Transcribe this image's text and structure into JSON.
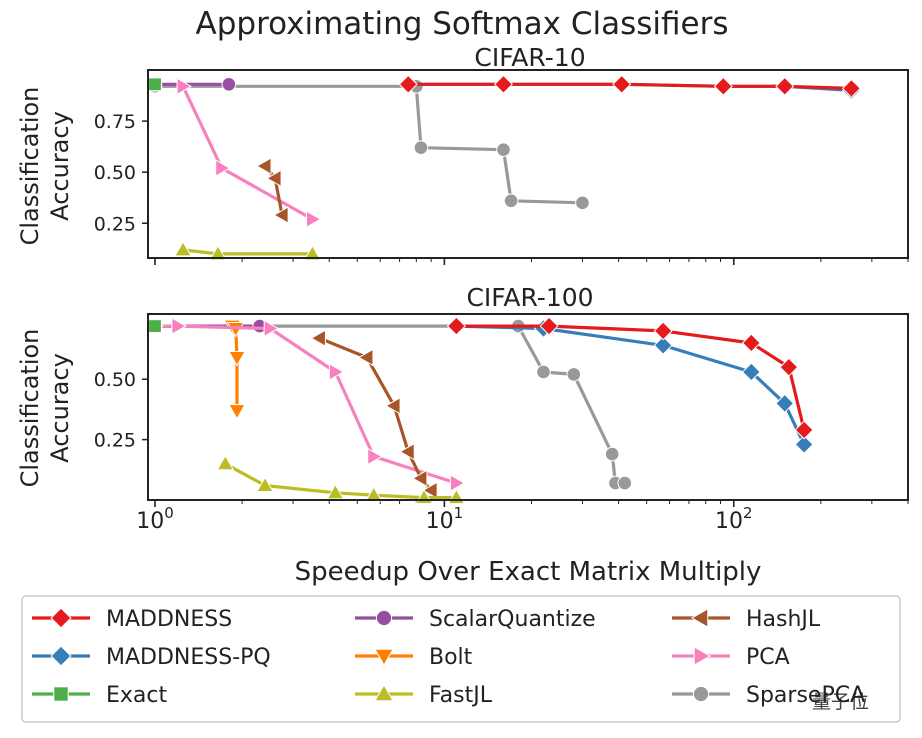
{
  "chart_data": {
    "type": "line",
    "title": "Approximating Softmax Classifiers",
    "xlabel": "Speedup Over Exact Matrix Multiply",
    "xscale": "log",
    "xlim": [
      1,
      400
    ],
    "xticks": [
      {
        "value": 1,
        "base": "10",
        "exp": "0"
      },
      {
        "value": 10,
        "base": "10",
        "exp": "1"
      },
      {
        "value": 100,
        "base": "10",
        "exp": "2"
      }
    ],
    "ylabel_line1": "Classification",
    "ylabel_line2": "Accuracy",
    "legend_position": "bottom",
    "colors": {
      "MADDNESS": "#e41a1c",
      "MADDNESS-PQ": "#377eb8",
      "Exact": "#4daf4a",
      "ScalarQuantize": "#984ea3",
      "Bolt": "#ff7f00",
      "FastJL": "#bcbd22",
      "HashJL": "#a65628",
      "PCA": "#f781bf",
      "SparsePCA": "#999999"
    },
    "markers": {
      "MADDNESS": "diamond",
      "MADDNESS-PQ": "diamond",
      "Exact": "square",
      "ScalarQuantize": "circle",
      "Bolt": "triangle-down",
      "FastJL": "triangle-up",
      "HashJL": "triangle-left",
      "PCA": "triangle-right",
      "SparsePCA": "circle"
    },
    "legend": [
      "MADDNESS",
      "ScalarQuantize",
      "HashJL",
      "MADDNESS-PQ",
      "Bolt",
      "PCA",
      "Exact",
      "FastJL",
      "SparsePCA"
    ],
    "panels": [
      {
        "name": "CIFAR-10",
        "title": "CIFAR-10",
        "ylim": [
          0.08,
          1.0
        ],
        "yticks": [
          0.25,
          0.5,
          0.75
        ],
        "ytick_labels": [
          "0.25",
          "0.50",
          "0.75"
        ],
        "series": [
          {
            "name": "SparsePCA",
            "x": [
              1.0,
              8.0,
              8.3,
              16.0,
              17.0,
              30.0
            ],
            "y": [
              0.92,
              0.92,
              0.62,
              0.61,
              0.36,
              0.35
            ]
          },
          {
            "name": "ScalarQuantize",
            "x": [
              1.0,
              1.8
            ],
            "y": [
              0.93,
              0.93
            ]
          },
          {
            "name": "MADDNESS-PQ",
            "x": [
              7.5,
              16.0,
              41.0,
              92.0,
              150.0,
              255.0
            ],
            "y": [
              0.93,
              0.93,
              0.93,
              0.92,
              0.92,
              0.9
            ]
          },
          {
            "name": "MADDNESS",
            "x": [
              7.5,
              16.0,
              41.0,
              92.0,
              150.0,
              255.0
            ],
            "y": [
              0.93,
              0.93,
              0.93,
              0.92,
              0.92,
              0.91
            ]
          },
          {
            "name": "PCA",
            "x": [
              1.25,
              1.7,
              3.5
            ],
            "y": [
              0.92,
              0.52,
              0.27
            ]
          },
          {
            "name": "HashJL",
            "x": [
              2.4,
              2.6,
              2.75
            ],
            "y": [
              0.53,
              0.47,
              0.29
            ]
          },
          {
            "name": "FastJL",
            "x": [
              1.25,
              1.65,
              3.5
            ],
            "y": [
              0.12,
              0.1,
              0.1
            ]
          },
          {
            "name": "Exact",
            "x": [
              1.0
            ],
            "y": [
              0.93
            ]
          }
        ]
      },
      {
        "name": "CIFAR-100",
        "title": "CIFAR-100",
        "ylim": [
          0.0,
          0.77
        ],
        "yticks": [
          0.25,
          0.5
        ],
        "ytick_labels": [
          "0.25",
          "0.50"
        ],
        "series": [
          {
            "name": "SparsePCA",
            "x": [
              1.0,
              11.0,
              18.0,
              22.0,
              28.0,
              38.0,
              39.0,
              42.0
            ],
            "y": [
              0.72,
              0.72,
              0.72,
              0.53,
              0.52,
              0.19,
              0.07,
              0.07
            ]
          },
          {
            "name": "ScalarQuantize",
            "x": [
              1.0,
              2.3
            ],
            "y": [
              0.72,
              0.72
            ]
          },
          {
            "name": "Bolt",
            "x": [
              1.85,
              1.9,
              1.92,
              1.92
            ],
            "y": [
              0.72,
              0.71,
              0.59,
              0.37
            ]
          },
          {
            "name": "PCA",
            "x": [
              1.0,
              1.2,
              2.5,
              4.2,
              5.7,
              11.0
            ],
            "y": [
              0.72,
              0.72,
              0.71,
              0.53,
              0.18,
              0.07
            ]
          },
          {
            "name": "HashJL",
            "x": [
              3.7,
              5.4,
              6.7,
              7.5,
              8.3,
              9.0
            ],
            "y": [
              0.67,
              0.59,
              0.39,
              0.2,
              0.09,
              0.04
            ]
          },
          {
            "name": "FastJL",
            "x": [
              1.75,
              2.4,
              4.2,
              5.7,
              8.5,
              11.0
            ],
            "y": [
              0.15,
              0.06,
              0.03,
              0.02,
              0.01,
              0.01
            ]
          },
          {
            "name": "MADDNESS-PQ",
            "x": [
              11.0,
              22.0,
              57.0,
              115.0,
              150.0,
              175.0
            ],
            "y": [
              0.72,
              0.71,
              0.64,
              0.53,
              0.4,
              0.23
            ]
          },
          {
            "name": "MADDNESS",
            "x": [
              11.0,
              23.0,
              57.0,
              115.0,
              155.0,
              175.0
            ],
            "y": [
              0.72,
              0.72,
              0.7,
              0.65,
              0.55,
              0.29
            ]
          },
          {
            "name": "Exact",
            "x": [
              1.0
            ],
            "y": [
              0.72
            ]
          }
        ]
      }
    ]
  },
  "watermark": {
    "text": "量子位"
  }
}
